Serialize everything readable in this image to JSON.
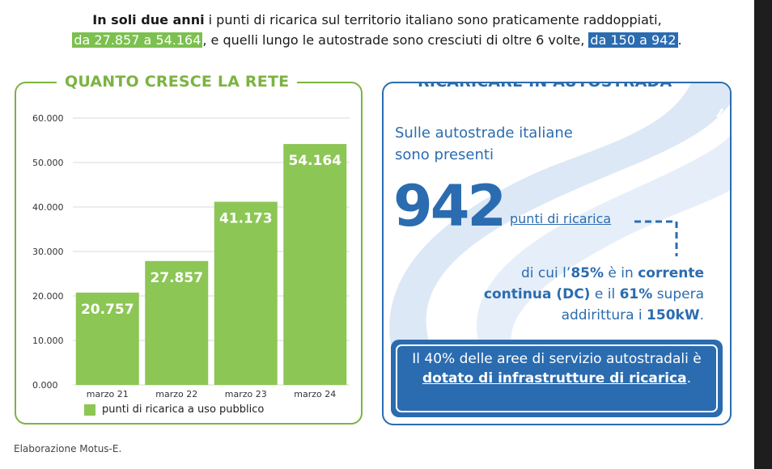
{
  "headline": {
    "bold_intro": "In soli due anni",
    "text1": " i punti di ricarica sul territorio italiano sono praticamente raddoppiati,",
    "green_highlight": "da 27.857 a 54.164",
    "text2": ", e quelli lungo le autostrade sono cresciuti di oltre 6 volte, ",
    "blue_highlight": "da 150 a 942",
    "text3": "."
  },
  "left_panel": {
    "title": "QUANTO CRESCE LA RETE"
  },
  "right_panel": {
    "title": "RICARICARE IN AUTOSTRADA",
    "intro": "Sulle autostrade italiane sono presenti",
    "big_number": "942",
    "big_label": "punti di ricarica",
    "detail": {
      "t1": "di cui l’",
      "b1": "85%",
      "t2": " è in ",
      "b2": "corrente continua (DC)",
      "t3": " e il ",
      "b3": "61%",
      "t4": " supera addirittura i ",
      "b4": "150kW",
      "t5": "."
    },
    "info_box": {
      "text": "Il 40% delle aree di servizio autostradali è ",
      "link": "dotato di infrastrutture di ricarica",
      "end": "."
    }
  },
  "source": "Elaborazione Motus-E.",
  "colors": {
    "green": "#8cc655",
    "blue": "#2b6cb0",
    "road": "#dce8f6"
  },
  "chart_data": {
    "type": "bar",
    "categories": [
      "marzo 21",
      "marzo 22",
      "marzo 23",
      "marzo 24"
    ],
    "series": [
      {
        "name": "punti di ricarica a uso pubblico",
        "values": [
          20757,
          27857,
          41173,
          54164
        ]
      }
    ],
    "value_labels": [
      "20.757",
      "27.857",
      "41.173",
      "54.164"
    ],
    "ylim": [
      0,
      60000
    ],
    "yticks": [
      0,
      10000,
      20000,
      30000,
      40000,
      50000,
      60000
    ],
    "ytick_labels": [
      "0.000",
      "10.000",
      "20.000",
      "30.000",
      "40.000",
      "50.000",
      "60.000"
    ],
    "grid": true,
    "legend": "bottom"
  }
}
